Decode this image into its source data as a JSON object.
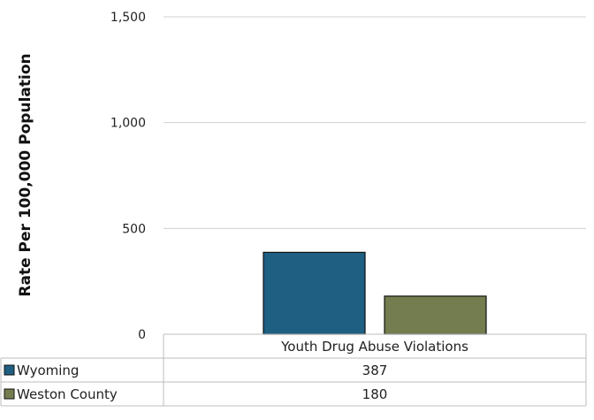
{
  "chart_data": {
    "type": "bar",
    "title": "",
    "xlabel": "",
    "ylabel": "Rate Per 100,000 Population",
    "categories": [
      "Youth Drug Abuse Violations"
    ],
    "series": [
      {
        "name": "Wyoming",
        "values": [
          387
        ],
        "value_labels": [
          "387"
        ],
        "color": "#1f5f82"
      },
      {
        "name": "Weston County",
        "values": [
          180
        ],
        "value_labels": [
          "180"
        ],
        "color": "#737d4f"
      }
    ],
    "ylim": [
      0,
      1500
    ],
    "yticks": [
      0,
      500,
      1000,
      1500
    ],
    "ytick_labels": [
      "0",
      "500",
      "1,000",
      "1,500"
    ],
    "grid": true,
    "legend": "data-table"
  }
}
